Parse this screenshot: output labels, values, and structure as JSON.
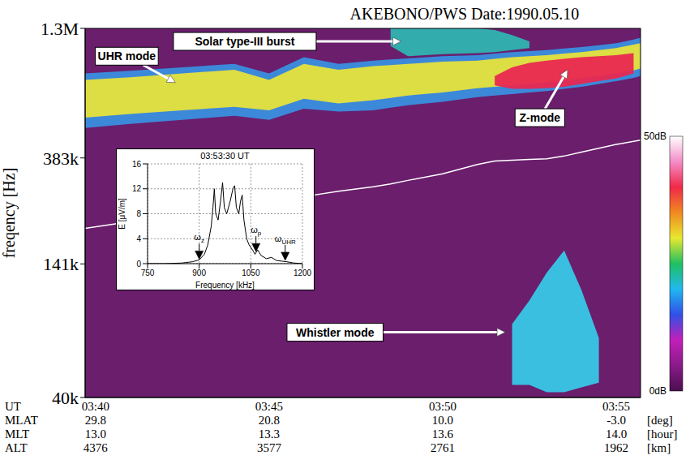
{
  "chart_data": [
    {
      "type": "spectrogram",
      "title": "AKEBONO/PWS Date:1990.05.10",
      "x": [
        219.7,
        221,
        222.5,
        224,
        225,
        226,
        227,
        228,
        228.5,
        229,
        230,
        231,
        231.5,
        232,
        232.5,
        233,
        233.5,
        234,
        234.5,
        235,
        235.5,
        235.7
      ],
      "xlim": [
        219.7,
        235.7
      ],
      "xticks": [
        {
          "value": 220,
          "label": "03:40"
        },
        {
          "value": 225,
          "label": "03:45"
        },
        {
          "value": 230,
          "label": "03:50"
        },
        {
          "value": 235,
          "label": "03:55"
        }
      ],
      "x_label": "UT",
      "y_label": "freqency [Hz]",
      "log": "y",
      "ylim": [
        40000,
        1300000
      ],
      "yticks": [
        {
          "value": 40000,
          "label": "40k"
        },
        {
          "value": 141000,
          "label": "141k"
        },
        {
          "value": 383000,
          "label": "383k"
        },
        {
          "value": 1300000,
          "label": "1.3M"
        }
      ],
      "grid": false,
      "series": [
        {
          "type": "band",
          "color": "#3a8fe0",
          "values": [
            [
              508000,
              850000
            ],
            [
              528000,
              871000
            ],
            [
              549000,
              900000
            ],
            [
              570000,
              930000
            ],
            [
              549000,
              850000
            ],
            [
              610000,
              990000
            ],
            [
              593000,
              930000
            ],
            [
              600000,
              960000
            ],
            [
              615000,
              970000
            ],
            [
              630000,
              980000
            ],
            [
              650000,
              1000000
            ],
            [
              680000,
              1010000
            ],
            [
              690000,
              1025000
            ],
            [
              700000,
              1040000
            ],
            [
              710000,
              1050000
            ],
            [
              720000,
              1060000
            ],
            [
              735000,
              1075000
            ],
            [
              750000,
              1090000
            ],
            [
              770000,
              1110000
            ],
            [
              790000,
              1130000
            ],
            [
              815000,
              1170000
            ],
            [
              830000,
              1190000
            ]
          ]
        },
        {
          "type": "band",
          "color": "#e6e23c",
          "values": [
            [
              560000,
              800000
            ],
            [
              580000,
              820000
            ],
            [
              600000,
              850000
            ],
            [
              620000,
              880000
            ],
            [
              600000,
              800000
            ],
            [
              670000,
              930000
            ],
            [
              640000,
              880000
            ],
            [
              660000,
              910000
            ],
            [
              675000,
              920000
            ],
            [
              690000,
              930000
            ],
            [
              710000,
              950000
            ],
            [
              740000,
              960000
            ],
            [
              750000,
              975000
            ],
            [
              760000,
              990000
            ],
            [
              770000,
              1000000
            ],
            [
              780000,
              1010000
            ],
            [
              795000,
              1025000
            ],
            [
              810000,
              1040000
            ],
            [
              830000,
              1060000
            ],
            [
              850000,
              1080000
            ],
            [
              875000,
              1115000
            ],
            [
              890000,
              1130000
            ]
          ]
        },
        {
          "type": "band",
          "color": "#e82850",
          "values": [
            null,
            null,
            null,
            null,
            null,
            null,
            null,
            null,
            null,
            null,
            null,
            null,
            [
              760000,
              830000
            ],
            [
              735000,
              900000
            ],
            [
              735000,
              940000
            ],
            [
              740000,
              960000
            ],
            [
              750000,
              975000
            ],
            [
              770000,
              990000
            ],
            [
              790000,
              1000000
            ],
            [
              810000,
              1010000
            ],
            [
              850000,
              1030000
            ],
            null
          ]
        },
        {
          "type": "band",
          "color": "#2fb4b0",
          "values": [
            null,
            null,
            null,
            null,
            null,
            null,
            null,
            null,
            [
              1100000,
              1300000
            ],
            [
              1000000,
              1300000
            ],
            [
              1020000,
              1300000
            ],
            [
              1030000,
              1300000
            ],
            [
              1040000,
              1280000
            ],
            [
              1060000,
              1220000
            ],
            [
              1080000,
              1150000
            ],
            null,
            null,
            null,
            null,
            null,
            null,
            null
          ]
        },
        {
          "type": "band",
          "color": "#38c8e8",
          "values": [
            null,
            null,
            null,
            null,
            null,
            null,
            null,
            null,
            null,
            null,
            null,
            null,
            null,
            [
              45000,
              80000
            ],
            [
              45000,
              100000
            ],
            [
              42000,
              130000
            ],
            [
              42000,
              160000
            ],
            [
              44000,
              110000
            ],
            [
              46000,
              70000
            ],
            null,
            null,
            null
          ]
        },
        {
          "type": "line",
          "color": "#ffffff",
          "values": [
            197000,
            210000,
            226000,
            243000,
            254000,
            266000,
            280000,
            292000,
            300000,
            310000,
            330000,
            360000,
            372000,
            375000,
            378000,
            380000,
            390000,
            405000,
            420000,
            435000,
            448000,
            453000
          ]
        }
      ],
      "annotations": [
        {
          "text": "UHR mode",
          "xy": [
            222.3,
            780000
          ],
          "text_xy": [
            220.9,
            1000000
          ]
        },
        {
          "text": "Solar type-III burst",
          "xy": [
            228.8,
            1150000
          ],
          "text_xy": [
            224.3,
            1150000
          ]
        },
        {
          "text": "Z-mode",
          "xy": [
            233.6,
            880000
          ],
          "text_xy": [
            232.8,
            560000
          ]
        },
        {
          "text": "Whistler mode",
          "xy": [
            231.8,
            74000
          ],
          "text_xy": [
            226.9,
            74000
          ]
        }
      ],
      "ephemeris": [
        {
          "label": "MLAT",
          "unit": "[deg]",
          "values": [
            "29.8",
            "20.8",
            "10.0",
            "-3.0"
          ]
        },
        {
          "label": "MLT",
          "unit": "[hour]",
          "values": [
            "13.0",
            "13.3",
            "13.6",
            "14.0"
          ]
        },
        {
          "label": "ALT",
          "unit": "[km]",
          "values": [
            "4376",
            "3577",
            "2761",
            "1962"
          ]
        }
      ],
      "colorbar": {
        "range": [
          0,
          50
        ],
        "ticks": [
          {
            "value": 0,
            "label": "0dB"
          },
          {
            "value": 50,
            "label": "50dB"
          }
        ],
        "colors": [
          "#4a0f4e",
          "#8a1a8a",
          "#c21fb8",
          "#3050e8",
          "#20b8f0",
          "#20c060",
          "#e8e830",
          "#f08a20",
          "#f02848",
          "#f48cc8",
          "#ffffff"
        ]
      }
    },
    {
      "type": "line",
      "title": "03:53:30 UT",
      "x": [
        750,
        800,
        850,
        880,
        900,
        915,
        925,
        935,
        940,
        944,
        948,
        955,
        962,
        968,
        973,
        980,
        990,
        998,
        1003,
        1008,
        1015,
        1020,
        1025,
        1030,
        1038,
        1045,
        1055,
        1062,
        1070,
        1080,
        1095,
        1110,
        1125,
        1140,
        1155,
        1175,
        1200
      ],
      "values": [
        0,
        0,
        0.1,
        0.3,
        0.6,
        1.5,
        3,
        6,
        9,
        12,
        8,
        7,
        10,
        13,
        9,
        8,
        10,
        12,
        12.5,
        9,
        8,
        10,
        11,
        7,
        4,
        3,
        2.2,
        1.5,
        2.2,
        1.3,
        0.8,
        1,
        0.5,
        0.4,
        0.3,
        0.1,
        0
      ],
      "color": "#000000",
      "line_style": "solid",
      "x_label": "Frequency [kHz]",
      "y_label": "E [μV/m]",
      "xlim": [
        750,
        1200
      ],
      "xticks": [
        750,
        900,
        1050,
        1200
      ],
      "ylim": [
        0,
        16
      ],
      "yticks": [
        0,
        4,
        8,
        12,
        16
      ],
      "grid": true,
      "annotations": [
        {
          "text": "ω",
          "subscript": "z",
          "xy": [
            900,
            0.6
          ]
        },
        {
          "text": "ω",
          "subscript": "p",
          "xy": [
            1065,
            1.8
          ]
        },
        {
          "text": "ω",
          "subscript": "UHR",
          "xy": [
            1150,
            0.4
          ]
        }
      ]
    }
  ]
}
